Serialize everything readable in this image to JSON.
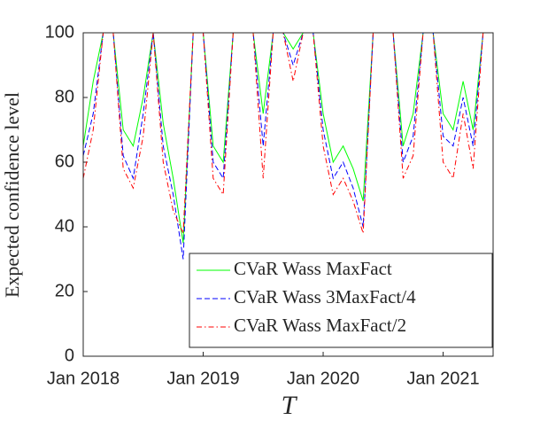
{
  "chart_data": {
    "type": "line",
    "x_label": "T",
    "y_label": "Expected confidence level",
    "x": [
      "2018-01",
      "2018-02",
      "2018-03",
      "2018-04",
      "2018-05",
      "2018-06",
      "2018-07",
      "2018-08",
      "2018-09",
      "2018-10",
      "2018-11",
      "2018-12",
      "2019-01",
      "2019-02",
      "2019-03",
      "2019-04",
      "2019-05",
      "2019-06",
      "2019-07",
      "2019-08",
      "2019-09",
      "2019-10",
      "2019-11",
      "2019-12",
      "2020-01",
      "2020-02",
      "2020-03",
      "2020-04",
      "2020-05",
      "2020-06",
      "2020-07",
      "2020-08",
      "2020-09",
      "2020-10",
      "2020-11",
      "2020-12",
      "2021-01",
      "2021-02",
      "2021-03",
      "2021-04",
      "2021-05",
      "2021-06"
    ],
    "xlim": [
      "2018-01",
      "2021-06"
    ],
    "xticks": [
      {
        "value": "2018-01",
        "label": "Jan 2018"
      },
      {
        "value": "2019-01",
        "label": "Jan 2019"
      },
      {
        "value": "2020-01",
        "label": "Jan 2020"
      },
      {
        "value": "2021-01",
        "label": "Jan 2021"
      }
    ],
    "ylim": [
      0,
      100
    ],
    "yticks": [
      0,
      20,
      40,
      60,
      80,
      100
    ],
    "legend": "lower right",
    "series": [
      {
        "name": "CVaR Wass MaxFact",
        "color": "#00ff00",
        "style": "solid",
        "values": [
          65,
          85,
          100,
          100,
          70,
          65,
          80,
          100,
          72,
          55,
          35,
          100,
          100,
          65,
          60,
          100,
          100,
          100,
          75,
          100,
          100,
          95,
          100,
          100,
          75,
          60,
          65,
          58,
          48,
          100,
          100,
          100,
          65,
          75,
          100,
          100,
          75,
          70,
          85,
          70,
          100,
          100
        ]
      },
      {
        "name": "CVaR Wass 3MaxFact/4",
        "color": "#0000ff",
        "style": "dashed",
        "values": [
          62,
          75,
          100,
          100,
          62,
          55,
          75,
          100,
          65,
          50,
          30,
          100,
          100,
          60,
          55,
          100,
          100,
          100,
          65,
          100,
          100,
          90,
          100,
          100,
          70,
          55,
          60,
          52,
          40,
          100,
          100,
          100,
          60,
          68,
          100,
          100,
          68,
          65,
          80,
          65,
          100,
          100
        ]
      },
      {
        "name": "CVaR Wass MaxFact/2",
        "color": "#ff0000",
        "style": "dashdot",
        "values": [
          55,
          70,
          100,
          100,
          58,
          52,
          68,
          100,
          60,
          45,
          38,
          100,
          100,
          55,
          50,
          100,
          100,
          100,
          55,
          100,
          100,
          85,
          100,
          100,
          65,
          50,
          55,
          48,
          38,
          100,
          100,
          100,
          55,
          62,
          100,
          100,
          60,
          55,
          75,
          58,
          100,
          100
        ]
      }
    ]
  }
}
